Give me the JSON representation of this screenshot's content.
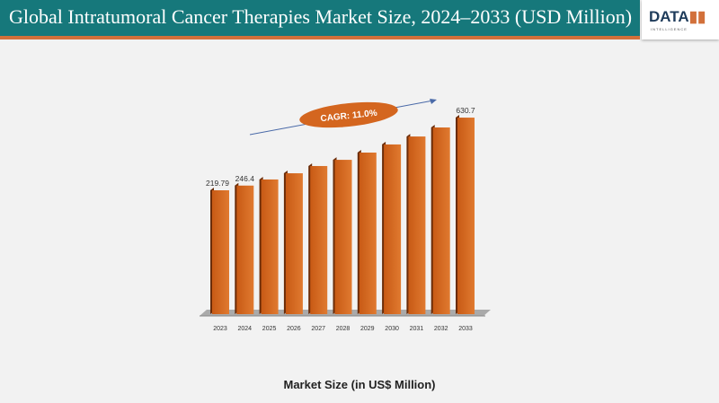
{
  "header": {
    "title": "Global Intratumoral Cancer Therapies Market Size, 2024–2033 (USD Million)",
    "logo": "DATAM INTELLIGENCE"
  },
  "chart_data": {
    "type": "bar",
    "title": "",
    "xlabel": "Market Size (in US$ Million)",
    "ylabel": "",
    "categories": [
      "2023",
      "2024",
      "2025",
      "2026",
      "2027",
      "2028",
      "2029",
      "2030",
      "2031",
      "2032",
      "2033"
    ],
    "values": [
      219.79,
      246.4,
      281,
      316,
      357,
      392,
      433,
      479,
      524,
      575,
      630.7
    ],
    "data_labels": {
      "0": "219.79",
      "1": "246.4",
      "10": "630.7"
    },
    "annotation": "CAGR: 11.0%",
    "grid": false,
    "colors": {
      "bar": "#d4661f",
      "bar_side": "#6b2c08",
      "header": "#16787b",
      "accent": "#d2703a"
    }
  }
}
